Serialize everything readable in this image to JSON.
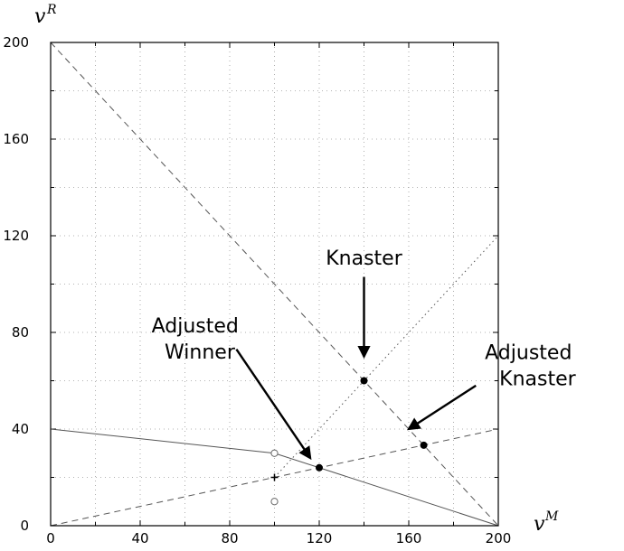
{
  "chart_data": {
    "type": "line",
    "title": "",
    "xlabel": {
      "base": "v",
      "sup": "M"
    },
    "ylabel": {
      "base": "v",
      "sup": "R"
    },
    "xlim": [
      0,
      200
    ],
    "ylim": [
      0,
      200
    ],
    "xticks": [
      "0",
      "40",
      "80",
      "120",
      "160",
      "200"
    ],
    "yticks": [
      "0",
      "40",
      "80",
      "120",
      "160",
      "200"
    ],
    "grid": true,
    "series": [
      {
        "style": "solid",
        "points": [
          [
            0,
            40
          ],
          [
            100,
            30
          ],
          [
            200,
            0
          ]
        ]
      },
      {
        "style": "dashed",
        "points": [
          [
            0,
            200
          ],
          [
            200,
            0
          ]
        ]
      },
      {
        "style": "dashed",
        "points": [
          [
            0,
            0
          ],
          [
            200,
            40
          ]
        ]
      },
      {
        "style": "dotted",
        "points": [
          [
            100,
            20
          ],
          [
            200,
            120
          ]
        ]
      }
    ],
    "markers": [
      {
        "kind": "filled-circle",
        "x": 120,
        "y": 24
      },
      {
        "kind": "filled-circle",
        "x": 140,
        "y": 60
      },
      {
        "kind": "filled-circle",
        "x": 166.7,
        "y": 33.3
      },
      {
        "kind": "open-circle",
        "x": 100,
        "y": 30
      },
      {
        "kind": "open-circle",
        "x": 100,
        "y": 10
      },
      {
        "kind": "plus",
        "x": 100,
        "y": 20
      }
    ],
    "annotations": [
      {
        "lines": [
          "Knaster"
        ],
        "anchor": "middle",
        "text_at": [
          140,
          108
        ],
        "arrow_from": [
          140,
          103
        ],
        "arrow_to": [
          140,
          70
        ]
      },
      {
        "lines": [
          "Adjusted",
          "Winner"
        ],
        "anchor": "end",
        "text_at": [
          84,
          80
        ],
        "arrow_from": [
          83,
          73
        ],
        "arrow_to": [
          116,
          28
        ]
      },
      {
        "lines": [
          "Adjusted",
          "Knaster"
        ],
        "anchor": "start",
        "text_at": [
          194,
          69
        ],
        "arrow_from": [
          190,
          58
        ],
        "arrow_to": [
          160,
          40
        ]
      }
    ]
  }
}
